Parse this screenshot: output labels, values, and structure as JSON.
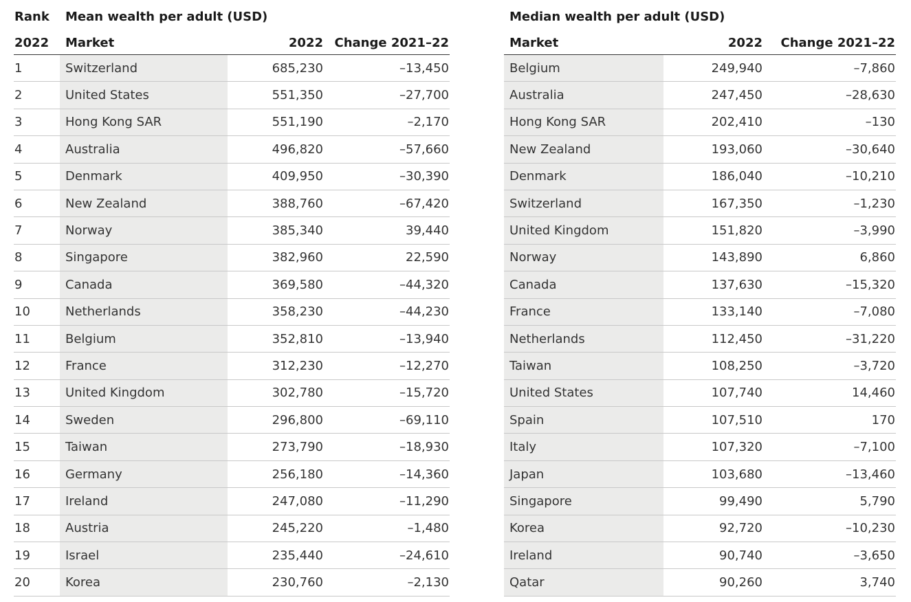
{
  "left": {
    "title_rank": "Rank",
    "title": "Mean wealth per adult (USD)",
    "header_rank_year": "2022",
    "header_market": "Market",
    "header_value": "2022",
    "header_change": "Change 2021–22",
    "rows": [
      {
        "rank": "1",
        "market": "Switzerland",
        "value": "685,230",
        "change": "–13,450"
      },
      {
        "rank": "2",
        "market": "United States",
        "value": "551,350",
        "change": "–27,700"
      },
      {
        "rank": "3",
        "market": "Hong Kong SAR",
        "value": "551,190",
        "change": "–2,170"
      },
      {
        "rank": "4",
        "market": "Australia",
        "value": "496,820",
        "change": "–57,660"
      },
      {
        "rank": "5",
        "market": "Denmark",
        "value": "409,950",
        "change": "–30,390"
      },
      {
        "rank": "6",
        "market": "New Zealand",
        "value": "388,760",
        "change": "–67,420"
      },
      {
        "rank": "7",
        "market": "Norway",
        "value": "385,340",
        "change": "39,440"
      },
      {
        "rank": "8",
        "market": "Singapore",
        "value": "382,960",
        "change": "22,590"
      },
      {
        "rank": "9",
        "market": "Canada",
        "value": "369,580",
        "change": "–44,320"
      },
      {
        "rank": "10",
        "market": "Netherlands",
        "value": "358,230",
        "change": "–44,230"
      },
      {
        "rank": "11",
        "market": "Belgium",
        "value": "352,810",
        "change": "–13,940"
      },
      {
        "rank": "12",
        "market": "France",
        "value": "312,230",
        "change": "–12,270"
      },
      {
        "rank": "13",
        "market": "United Kingdom",
        "value": "302,780",
        "change": "–15,720"
      },
      {
        "rank": "14",
        "market": "Sweden",
        "value": "296,800",
        "change": "–69,110"
      },
      {
        "rank": "15",
        "market": "Taiwan",
        "value": "273,790",
        "change": "–18,930"
      },
      {
        "rank": "16",
        "market": "Germany",
        "value": "256,180",
        "change": "–14,360"
      },
      {
        "rank": "17",
        "market": "Ireland",
        "value": "247,080",
        "change": "–11,290"
      },
      {
        "rank": "18",
        "market": "Austria",
        "value": "245,220",
        "change": "–1,480"
      },
      {
        "rank": "19",
        "market": "Israel",
        "value": "235,440",
        "change": "–24,610"
      },
      {
        "rank": "20",
        "market": "Korea",
        "value": "230,760",
        "change": "–2,130"
      }
    ]
  },
  "right": {
    "title": "Median wealth per adult (USD)",
    "header_market": "Market",
    "header_value": "2022",
    "header_change": "Change 2021–22",
    "rows": [
      {
        "market": "Belgium",
        "value": "249,940",
        "change": "–7,860"
      },
      {
        "market": "Australia",
        "value": "247,450",
        "change": "–28,630"
      },
      {
        "market": "Hong Kong SAR",
        "value": "202,410",
        "change": "–130"
      },
      {
        "market": "New Zealand",
        "value": "193,060",
        "change": "–30,640"
      },
      {
        "market": "Denmark",
        "value": "186,040",
        "change": "–10,210"
      },
      {
        "market": "Switzerland",
        "value": "167,350",
        "change": "–1,230"
      },
      {
        "market": "United Kingdom",
        "value": "151,820",
        "change": "–3,990"
      },
      {
        "market": "Norway",
        "value": "143,890",
        "change": "6,860"
      },
      {
        "market": "Canada",
        "value": "137,630",
        "change": "–15,320"
      },
      {
        "market": "France",
        "value": "133,140",
        "change": "–7,080"
      },
      {
        "market": "Netherlands",
        "value": "112,450",
        "change": "–31,220"
      },
      {
        "market": "Taiwan",
        "value": "108,250",
        "change": "–3,720"
      },
      {
        "market": "United States",
        "value": "107,740",
        "change": "14,460"
      },
      {
        "market": "Spain",
        "value": "107,510",
        "change": "170"
      },
      {
        "market": "Italy",
        "value": "107,320",
        "change": "–7,100"
      },
      {
        "market": "Japan",
        "value": "103,680",
        "change": "–13,460"
      },
      {
        "market": "Singapore",
        "value": "99,490",
        "change": "5,790"
      },
      {
        "market": "Korea",
        "value": "92,720",
        "change": "–10,230"
      },
      {
        "market": "Ireland",
        "value": "90,740",
        "change": "–3,650"
      },
      {
        "market": "Qatar",
        "value": "90,260",
        "change": "3,740"
      }
    ]
  }
}
